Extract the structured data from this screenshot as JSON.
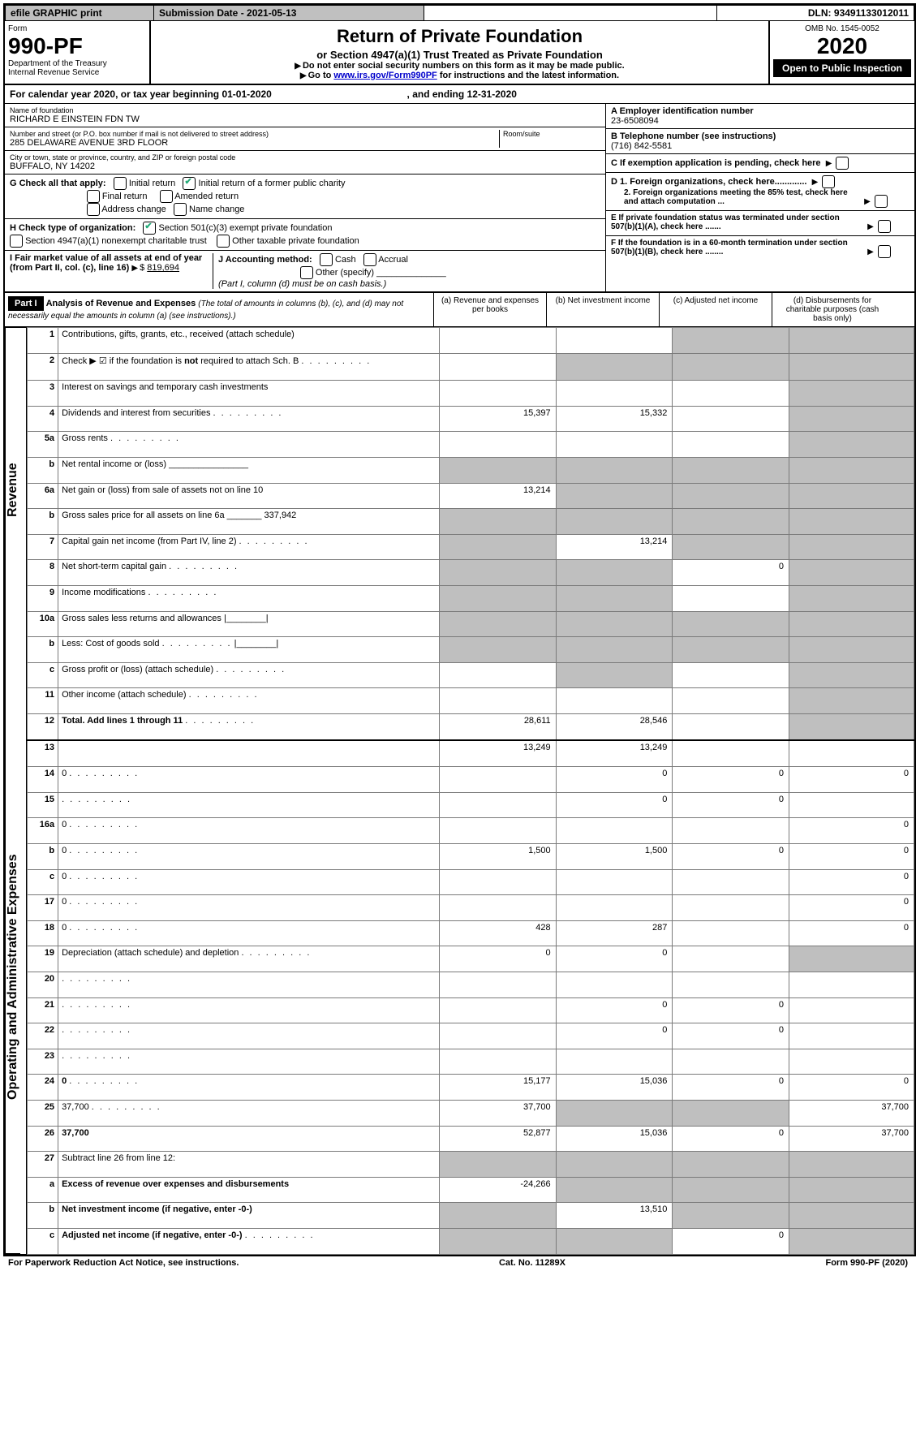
{
  "topbar": {
    "efile": "efile GRAPHIC print",
    "subdate_label": "Submission Date - ",
    "subdate": "2021-05-13",
    "dln_label": "DLN: ",
    "dln": "93491133012011"
  },
  "header": {
    "form_word": "Form",
    "form_num": "990-PF",
    "dept1": "Department of the Treasury",
    "dept2": "Internal Revenue Service",
    "title": "Return of Private Foundation",
    "subtitle": "or Section 4947(a)(1) Trust Treated as Private Foundation",
    "note1": "Do not enter social security numbers on this form as it may be made public.",
    "note2_a": "Go to ",
    "note2_link": "www.irs.gov/Form990PF",
    "note2_b": " for instructions and the latest information.",
    "omb": "OMB No. 1545-0052",
    "year": "2020",
    "open": "Open to Public Inspection"
  },
  "cal": {
    "text_a": "For calendar year 2020, or tax year beginning ",
    "begin": "01-01-2020",
    "text_b": ", and ending ",
    "end": "12-31-2020"
  },
  "id": {
    "name_lbl": "Name of foundation",
    "name": "RICHARD E EINSTEIN FDN TW",
    "addr_lbl": "Number and street (or P.O. box number if mail is not delivered to street address)",
    "addr": "285 DELAWARE AVENUE 3RD FLOOR",
    "room_lbl": "Room/suite",
    "city_lbl": "City or town, state or province, country, and ZIP or foreign postal code",
    "city": "BUFFALO, NY  14202",
    "a_lbl": "A Employer identification number",
    "a_val": "23-6508094",
    "b_lbl": "B Telephone number (see instructions)",
    "b_val": "(716) 842-5581",
    "c_lbl": "C If exemption application is pending, check here",
    "d1": "D 1. Foreign organizations, check here.............",
    "d2": "2. Foreign organizations meeting the 85% test, check here and attach computation ...",
    "e": "E  If private foundation status was terminated under section 507(b)(1)(A), check here .......",
    "f": "F  If the foundation is in a 60-month termination under section 507(b)(1)(B), check here ........"
  },
  "g": {
    "lbl": "G Check all that apply:",
    "opts": [
      "Initial return",
      "Initial return of a former public charity",
      "Final return",
      "Amended return",
      "Address change",
      "Name change"
    ]
  },
  "h": {
    "lbl": "H Check type of organization:",
    "o1": "Section 501(c)(3) exempt private foundation",
    "o2": "Section 4947(a)(1) nonexempt charitable trust",
    "o3": "Other taxable private foundation"
  },
  "i": {
    "lbl": "I Fair market value of all assets at end of year (from Part II, col. (c), line 16)",
    "val": "819,694"
  },
  "j": {
    "lbl": "J Accounting method:",
    "o1": "Cash",
    "o2": "Accrual",
    "o3": "Other (specify)",
    "note": "(Part I, column (d) must be on cash basis.)"
  },
  "part1": {
    "label": "Part I",
    "title": "Analysis of Revenue and Expenses",
    "sub": "(The total of amounts in columns (b), (c), and (d) may not necessarily equal the amounts in column (a) (see instructions).)",
    "cols": {
      "a": "(a)    Revenue and expenses per books",
      "b": "(b)  Net investment income",
      "c": "(c)  Adjusted net income",
      "d": "(d)  Disbursements for charitable purposes (cash basis only)"
    }
  },
  "side": {
    "rev": "Revenue",
    "exp": "Operating and Administrative Expenses"
  },
  "lines": [
    {
      "n": "1",
      "d": "Contributions, gifts, grants, etc., received (attach schedule)",
      "a": "",
      "b": "",
      "c_sh": true,
      "d_sh": true
    },
    {
      "n": "2",
      "d": "Check ▶ ☑ if the foundation is not required to attach Sch. B",
      "dots": true,
      "a": "",
      "b_sh": true,
      "c_sh": true,
      "d_sh": true,
      "bold_not": true
    },
    {
      "n": "3",
      "d": "Interest on savings and temporary cash investments",
      "a": "",
      "b": "",
      "c": "",
      "d_sh": true
    },
    {
      "n": "4",
      "d": "Dividends and interest from securities",
      "dots": true,
      "a": "15,397",
      "b": "15,332",
      "c": "",
      "d_sh": true
    },
    {
      "n": "5a",
      "d": "Gross rents",
      "dots": true,
      "a": "",
      "b": "",
      "c": "",
      "d_sh": true
    },
    {
      "n": "b",
      "d": "Net rental income or (loss)  ________________",
      "a_sh": true,
      "b_sh": true,
      "c_sh": true,
      "d_sh": true
    },
    {
      "n": "6a",
      "d": "Net gain or (loss) from sale of assets not on line 10",
      "a": "13,214",
      "b_sh": true,
      "c_sh": true,
      "d_sh": true
    },
    {
      "n": "b",
      "d": "Gross sales price for all assets on line 6a _______ 337,942",
      "a_sh": true,
      "b_sh": true,
      "c_sh": true,
      "d_sh": true
    },
    {
      "n": "7",
      "d": "Capital gain net income (from Part IV, line 2)",
      "dots": true,
      "a_sh": true,
      "b": "13,214",
      "c_sh": true,
      "d_sh": true
    },
    {
      "n": "8",
      "d": "Net short-term capital gain",
      "dots": true,
      "a_sh": true,
      "b_sh": true,
      "c": "0",
      "d_sh": true
    },
    {
      "n": "9",
      "d": "Income modifications",
      "dots": true,
      "a_sh": true,
      "b_sh": true,
      "c": "",
      "d_sh": true
    },
    {
      "n": "10a",
      "d": "Gross sales less returns and allowances  |________|",
      "a_sh": true,
      "b_sh": true,
      "c_sh": true,
      "d_sh": true
    },
    {
      "n": "b",
      "d": "Less: Cost of goods sold",
      "dots": true,
      "extra": "|________|",
      "a_sh": true,
      "b_sh": true,
      "c_sh": true,
      "d_sh": true
    },
    {
      "n": "c",
      "d": "Gross profit or (loss) (attach schedule)",
      "dots": true,
      "a": "",
      "b_sh": true,
      "c": "",
      "d_sh": true
    },
    {
      "n": "11",
      "d": "Other income (attach schedule)",
      "dots": true,
      "a": "",
      "b": "",
      "c": "",
      "d_sh": true
    },
    {
      "n": "12",
      "d": "Total. Add lines 1 through 11",
      "dots": true,
      "bold": true,
      "a": "28,611",
      "b": "28,546",
      "c": "",
      "d_sh": true
    },
    {
      "n": "13",
      "d": "",
      "a": "13,249",
      "b": "13,249",
      "c": ""
    },
    {
      "n": "14",
      "d": "0",
      "dots": true,
      "a": "",
      "b": "0",
      "c": "0"
    },
    {
      "n": "15",
      "d": "",
      "dots": true,
      "a": "",
      "b": "0",
      "c": "0"
    },
    {
      "n": "16a",
      "d": "0",
      "dots": true,
      "a": "",
      "b": "",
      "c": ""
    },
    {
      "n": "b",
      "d": "0",
      "dots": true,
      "a": "1,500",
      "b": "1,500",
      "c": "0"
    },
    {
      "n": "c",
      "d": "0",
      "dots": true,
      "a": "",
      "b": "",
      "c": ""
    },
    {
      "n": "17",
      "d": "0",
      "dots": true,
      "a": "",
      "b": "",
      "c": ""
    },
    {
      "n": "18",
      "d": "0",
      "dots": true,
      "a": "428",
      "b": "287",
      "c": ""
    },
    {
      "n": "19",
      "d": "Depreciation (attach schedule) and depletion",
      "dots": true,
      "a": "0",
      "b": "0",
      "c": "",
      "d_sh": true
    },
    {
      "n": "20",
      "d": "",
      "dots": true,
      "a": "",
      "b": "",
      "c": ""
    },
    {
      "n": "21",
      "d": "",
      "dots": true,
      "a": "",
      "b": "0",
      "c": "0"
    },
    {
      "n": "22",
      "d": "",
      "dots": true,
      "a": "",
      "b": "0",
      "c": "0"
    },
    {
      "n": "23",
      "d": "",
      "dots": true,
      "a": "",
      "b": "",
      "c": ""
    },
    {
      "n": "24",
      "d": "0",
      "dots": true,
      "bold": true,
      "a": "15,177",
      "b": "15,036",
      "c": "0"
    },
    {
      "n": "25",
      "d": "37,700",
      "dots": true,
      "a": "37,700",
      "b_sh": true,
      "c_sh": true
    },
    {
      "n": "26",
      "d": "37,700",
      "bold": true,
      "a": "52,877",
      "b": "15,036",
      "c": "0"
    },
    {
      "n": "27",
      "d": "Subtract line 26 from line 12:",
      "a_sh": true,
      "b_sh": true,
      "c_sh": true,
      "d_sh": true
    },
    {
      "n": "a",
      "d": "Excess of revenue over expenses and disbursements",
      "bold": true,
      "a": "-24,266",
      "b_sh": true,
      "c_sh": true,
      "d_sh": true
    },
    {
      "n": "b",
      "d": "Net investment income (if negative, enter -0-)",
      "bold": true,
      "a_sh": true,
      "b": "13,510",
      "c_sh": true,
      "d_sh": true
    },
    {
      "n": "c",
      "d": "Adjusted net income (if negative, enter -0-)",
      "dots": true,
      "bold": true,
      "a_sh": true,
      "b_sh": true,
      "c": "0",
      "d_sh": true
    }
  ],
  "footer": {
    "left": "For Paperwork Reduction Act Notice, see instructions.",
    "mid": "Cat. No. 11289X",
    "right": "Form 990-PF (2020)"
  }
}
